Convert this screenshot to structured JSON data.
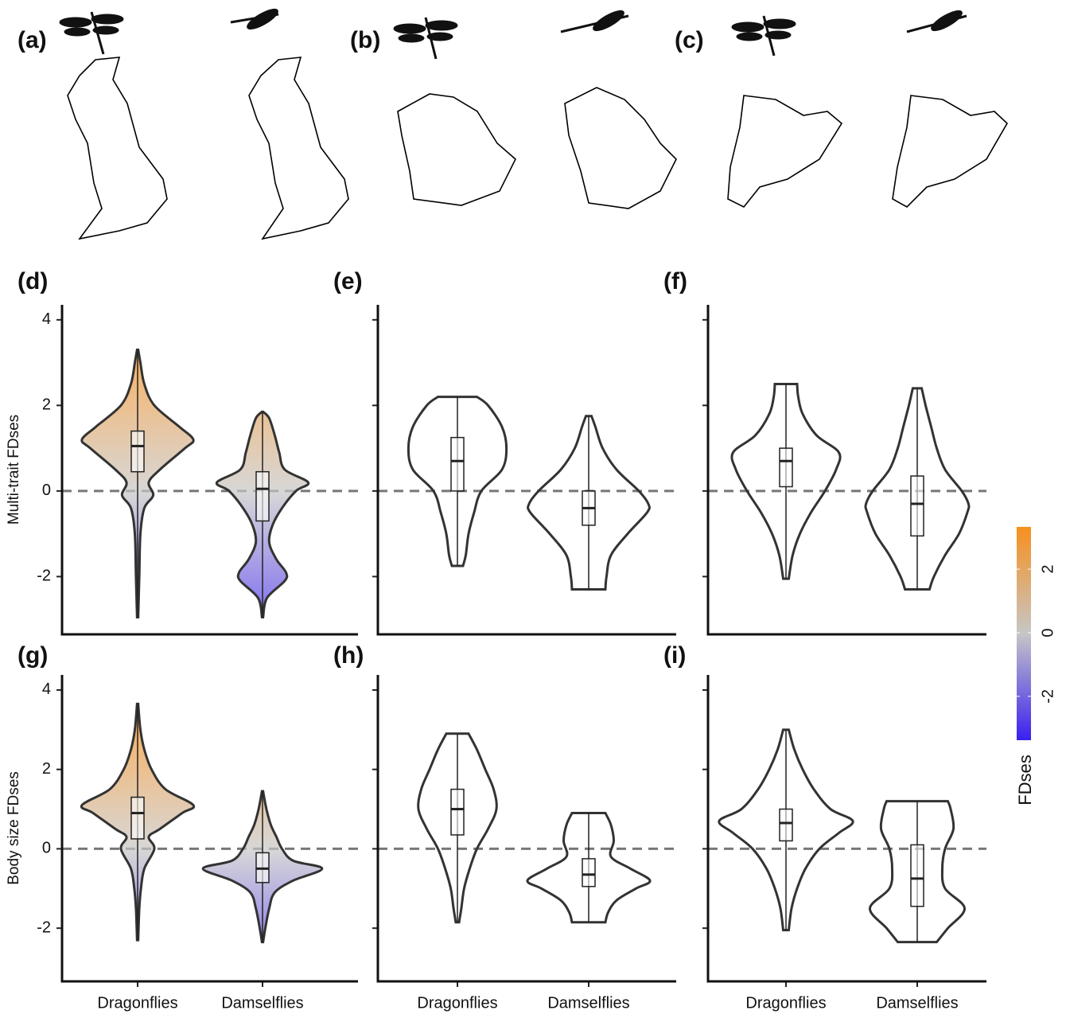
{
  "panels_top": [
    {
      "label": "(a)"
    },
    {
      "label": "(b)"
    },
    {
      "label": "(c)"
    }
  ],
  "colorbar": {
    "title": "FDses",
    "lim": [
      -3.38,
      3.33
    ],
    "ticks": [
      -2,
      0,
      2
    ],
    "colors": [
      "#3a20f0",
      "#c6c6c6",
      "#f7901e"
    ]
  },
  "chart_data": [
    {
      "type": "violin",
      "label": "(d)",
      "ylabel": "Multi-trait FDses",
      "ylim": [
        -3.35,
        4.35
      ],
      "yticks": [
        -2,
        0,
        2,
        4
      ],
      "tick_labels": true,
      "fill": "gradient",
      "zero_line": true,
      "groups": [
        {
          "min": -2.95,
          "q1": 0.45,
          "median": 1.05,
          "q3": 1.4,
          "max": 3.3,
          "density_y": [
            -2.95,
            -2,
            -1,
            -0.4,
            -0.1,
            0.2,
            0.5,
            1.0,
            1.2,
            1.5,
            2,
            2.5,
            3,
            3.3
          ],
          "density_w": [
            0.01,
            0.03,
            0.05,
            0.12,
            0.28,
            0.2,
            0.4,
            0.85,
            1.0,
            0.75,
            0.3,
            0.12,
            0.05,
            0.01
          ]
        },
        {
          "min": -2.95,
          "q1": -0.7,
          "median": 0.05,
          "q3": 0.45,
          "max": 1.85,
          "density_y": [
            -2.95,
            -2.5,
            -2.1,
            -1.9,
            -1.6,
            -1.2,
            -0.8,
            -0.4,
            0,
            0.2,
            0.5,
            0.9,
            1.3,
            1.7,
            1.85
          ],
          "density_w": [
            0.01,
            0.08,
            0.4,
            0.42,
            0.25,
            0.12,
            0.18,
            0.35,
            0.6,
            0.82,
            0.4,
            0.3,
            0.22,
            0.12,
            0.01
          ]
        }
      ]
    },
    {
      "type": "violin",
      "label": "(e)",
      "ylim": [
        -3.35,
        4.35
      ],
      "yticks": [
        -2,
        0,
        2,
        4
      ],
      "tick_labels": false,
      "fill": "none",
      "zero_line": true,
      "groups": [
        {
          "min": -1.75,
          "q1": 0,
          "median": 0.7,
          "q3": 1.25,
          "max": 2.2,
          "density_y": [
            -1.75,
            -1.5,
            -1,
            -0.5,
            0,
            0.5,
            1,
            1.5,
            2,
            2.2
          ],
          "density_w": [
            0.1,
            0.15,
            0.2,
            0.3,
            0.43,
            0.8,
            0.88,
            0.8,
            0.55,
            0.35
          ]
        },
        {
          "min": -2.3,
          "q1": -0.8,
          "median": -0.4,
          "q3": 0,
          "max": 1.75,
          "density_y": [
            -2.3,
            -2,
            -1.5,
            -1,
            -0.5,
            -0.3,
            0,
            0.5,
            1,
            1.5,
            1.75
          ],
          "density_w": [
            0.3,
            0.32,
            0.4,
            0.7,
            1.05,
            1.07,
            0.9,
            0.5,
            0.25,
            0.12,
            0.05
          ]
        }
      ]
    },
    {
      "type": "violin",
      "label": "(f)",
      "ylim": [
        -3.35,
        4.35
      ],
      "yticks": [
        -2,
        0,
        2,
        4
      ],
      "tick_labels": false,
      "fill": "none",
      "zero_line": true,
      "groups": [
        {
          "min": -2.05,
          "q1": 0.1,
          "median": 0.7,
          "q3": 1.0,
          "max": 2.5,
          "density_y": [
            -2.05,
            -1.5,
            -1,
            -0.5,
            0,
            0.5,
            0.9,
            1.3,
            1.8,
            2.2,
            2.5
          ],
          "density_w": [
            0.05,
            0.12,
            0.25,
            0.45,
            0.7,
            0.9,
            0.95,
            0.55,
            0.3,
            0.22,
            0.2
          ]
        },
        {
          "min": -2.3,
          "q1": -1.05,
          "median": -0.3,
          "q3": 0.35,
          "max": 2.4,
          "density_y": [
            -2.3,
            -2,
            -1.5,
            -1,
            -0.5,
            -0.3,
            0,
            0.5,
            1,
            1.5,
            2,
            2.4
          ],
          "density_w": [
            0.22,
            0.3,
            0.5,
            0.75,
            0.9,
            0.92,
            0.8,
            0.5,
            0.35,
            0.25,
            0.15,
            0.08
          ]
        }
      ]
    },
    {
      "type": "violin",
      "label": "(g)",
      "ylabel": "Body size FDses",
      "categories": [
        "Dragonflies",
        "Damselflies"
      ],
      "ylim": [
        -3.34,
        4.38
      ],
      "yticks": [
        -2,
        0,
        2,
        4
      ],
      "tick_labels": true,
      "fill": "gradient",
      "zero_line": true,
      "groups": [
        {
          "min": -2.3,
          "q1": 0.25,
          "median": 0.9,
          "q3": 1.3,
          "max": 3.65,
          "density_y": [
            -2.3,
            -1.5,
            -1,
            -0.5,
            0,
            0.3,
            0.5,
            0.9,
            1.1,
            1.5,
            2,
            2.5,
            3,
            3.65
          ],
          "density_w": [
            0.01,
            0.03,
            0.06,
            0.12,
            0.3,
            0.2,
            0.4,
            0.8,
            1.0,
            0.5,
            0.25,
            0.12,
            0.05,
            0.01
          ]
        },
        {
          "min": -2.35,
          "q1": -0.85,
          "median": -0.5,
          "q3": -0.1,
          "max": 1.45,
          "density_y": [
            -2.35,
            -2,
            -1.5,
            -1.1,
            -0.8,
            -0.5,
            -0.3,
            0,
            0.3,
            0.6,
            1,
            1.45
          ],
          "density_w": [
            0.01,
            0.05,
            0.12,
            0.22,
            0.55,
            1.07,
            0.55,
            0.35,
            0.25,
            0.15,
            0.07,
            0.01
          ]
        }
      ]
    },
    {
      "type": "violin",
      "label": "(h)",
      "categories": [
        "Dragonflies",
        "Damselflies"
      ],
      "ylim": [
        -3.34,
        4.38
      ],
      "yticks": [
        -2,
        0,
        2,
        4
      ],
      "tick_labels": false,
      "fill": "none",
      "zero_line": true,
      "groups": [
        {
          "min": -1.85,
          "q1": 0.35,
          "median": 1.0,
          "q3": 1.5,
          "max": 2.9,
          "density_y": [
            -1.85,
            -1.5,
            -1,
            -0.5,
            0,
            0.5,
            1,
            1.5,
            2,
            2.5,
            2.9
          ],
          "density_w": [
            0.03,
            0.07,
            0.12,
            0.22,
            0.35,
            0.55,
            0.7,
            0.65,
            0.5,
            0.35,
            0.2
          ]
        },
        {
          "min": -1.85,
          "q1": -0.95,
          "median": -0.65,
          "q3": -0.25,
          "max": 0.9,
          "density_y": [
            -1.85,
            -1.6,
            -1.3,
            -1,
            -0.8,
            -0.5,
            -0.2,
            0.2,
            0.6,
            0.9
          ],
          "density_w": [
            0.3,
            0.35,
            0.5,
            0.85,
            1.1,
            0.75,
            0.4,
            0.45,
            0.4,
            0.3
          ]
        }
      ]
    },
    {
      "type": "violin",
      "label": "(i)",
      "categories": [
        "Dragonflies",
        "Damselflies"
      ],
      "ylim": [
        -3.34,
        4.38
      ],
      "yticks": [
        -2,
        0,
        2,
        4
      ],
      "tick_labels": false,
      "fill": "none",
      "zero_line": true,
      "groups": [
        {
          "min": -2.05,
          "q1": 0.2,
          "median": 0.65,
          "q3": 1.0,
          "max": 3.0,
          "density_y": [
            -2.05,
            -1.5,
            -1,
            -0.5,
            0,
            0.4,
            0.7,
            1,
            1.5,
            2,
            2.5,
            3
          ],
          "density_w": [
            0.05,
            0.1,
            0.2,
            0.35,
            0.6,
            0.95,
            1.2,
            0.8,
            0.5,
            0.3,
            0.15,
            0.05
          ]
        },
        {
          "min": -2.35,
          "q1": -1.45,
          "median": -0.75,
          "q3": 0.1,
          "max": 1.2,
          "density_y": [
            -2.35,
            -2,
            -1.5,
            -1,
            -0.5,
            0,
            0.5,
            1,
            1.2
          ],
          "density_w": [
            0.35,
            0.55,
            0.85,
            0.5,
            0.45,
            0.5,
            0.65,
            0.6,
            0.55
          ]
        }
      ]
    }
  ]
}
